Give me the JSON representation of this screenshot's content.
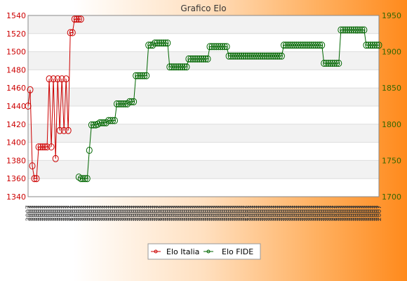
{
  "chart_data": {
    "type": "line",
    "title": "Grafico Elo",
    "xlabel": "",
    "ylabel_left": "",
    "ylabel_right": "",
    "ylim_left": [
      1340,
      1540
    ],
    "ylim_right": [
      1700,
      1950
    ],
    "yticks_left": [
      1340,
      1360,
      1380,
      1400,
      1420,
      1440,
      1460,
      1480,
      1500,
      1520,
      1540
    ],
    "yticks_right": [
      1700,
      1750,
      1800,
      1850,
      1900,
      1950
    ],
    "grid": true,
    "legend_position": "bottom",
    "x_label_sample": "2007",
    "series": [
      {
        "name": "Elo Italia",
        "axis": "left",
        "color": "#cc0000",
        "values": [
          1440,
          1458,
          1374,
          1360,
          1360,
          1395,
          1395,
          1395,
          1395,
          1395,
          1470,
          1395,
          1470,
          1382,
          1470,
          1413,
          1470,
          1413,
          1470,
          1413,
          1521,
          1521,
          1536,
          1536,
          1536,
          1536
        ]
      },
      {
        "name": "Elo FIDE",
        "axis": "right",
        "color": "#006600",
        "start_index": 24,
        "values": [
          1727,
          1725,
          1725,
          1725,
          1725,
          1764,
          1799,
          1799,
          1799,
          1800,
          1802,
          1802,
          1802,
          1802,
          1805,
          1805,
          1805,
          1805,
          1828,
          1828,
          1828,
          1828,
          1828,
          1828,
          1831,
          1831,
          1831,
          1867,
          1867,
          1867,
          1867,
          1867,
          1867,
          1909,
          1909,
          1909,
          1912,
          1912,
          1912,
          1912,
          1912,
          1912,
          1912,
          1879,
          1879,
          1879,
          1879,
          1879,
          1879,
          1879,
          1879,
          1879,
          1890,
          1890,
          1890,
          1890,
          1890,
          1890,
          1890,
          1890,
          1890,
          1890,
          1907,
          1907,
          1907,
          1907,
          1907,
          1907,
          1907,
          1907,
          1907,
          1894,
          1894,
          1894,
          1894,
          1894,
          1894,
          1894,
          1894,
          1894,
          1894,
          1894,
          1894,
          1894,
          1894,
          1894,
          1894,
          1894,
          1894,
          1894,
          1894,
          1894,
          1894,
          1894,
          1894,
          1894,
          1894,
          1909,
          1909,
          1909,
          1909,
          1909,
          1909,
          1909,
          1909,
          1909,
          1909,
          1909,
          1909,
          1909,
          1909,
          1909,
          1909,
          1909,
          1909,
          1909,
          1884,
          1884,
          1884,
          1884,
          1884,
          1884,
          1884,
          1884,
          1930,
          1930,
          1930,
          1930,
          1930,
          1930,
          1930,
          1930,
          1930,
          1930,
          1930,
          1930,
          1909,
          1909,
          1909,
          1909,
          1909,
          1909,
          1909
        ]
      }
    ]
  }
}
